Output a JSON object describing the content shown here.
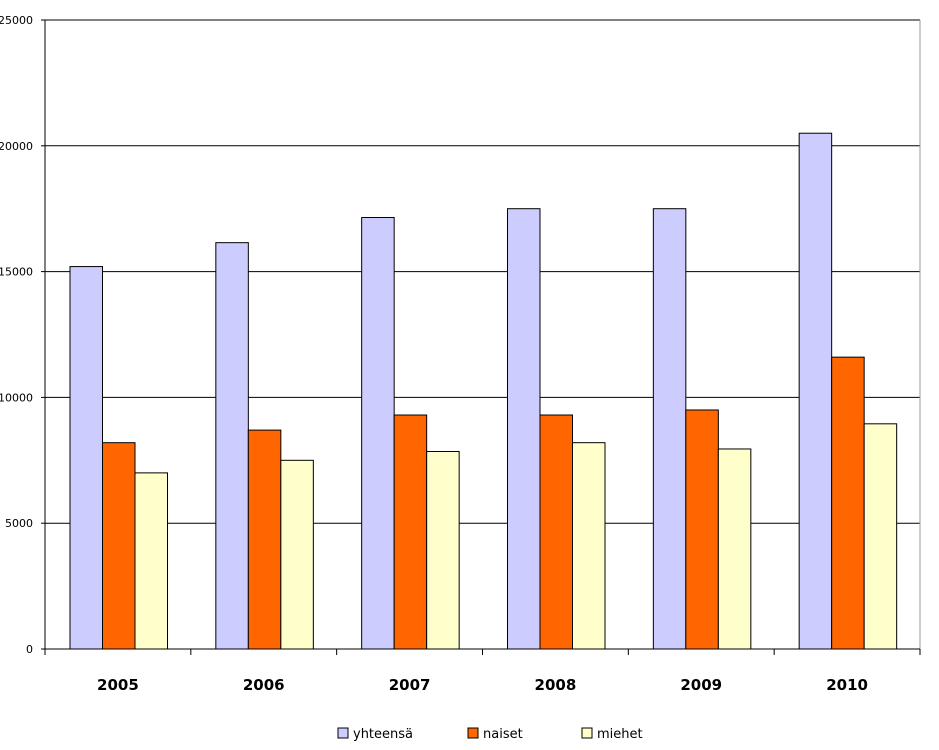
{
  "chart_data": {
    "type": "bar",
    "categories": [
      "2005",
      "2006",
      "2007",
      "2008",
      "2009",
      "2010"
    ],
    "series": [
      {
        "name": "yhteensä",
        "values": [
          15200,
          16150,
          17150,
          17500,
          17500,
          20500
        ],
        "color": "#ccccff"
      },
      {
        "name": "naiset",
        "values": [
          8200,
          8700,
          9300,
          9300,
          9500,
          11600
        ],
        "color": "#ff6600"
      },
      {
        "name": "miehet",
        "values": [
          7000,
          7500,
          7850,
          8200,
          7950,
          8950
        ],
        "color": "#ffffcc"
      }
    ],
    "ylim": [
      0,
      25000
    ],
    "yticks": [
      "0",
      "5000",
      "10000",
      "15000",
      "20000",
      "25000"
    ],
    "grid": true,
    "legend_position": "bottom-center",
    "title": "",
    "xlabel": "",
    "ylabel": ""
  }
}
